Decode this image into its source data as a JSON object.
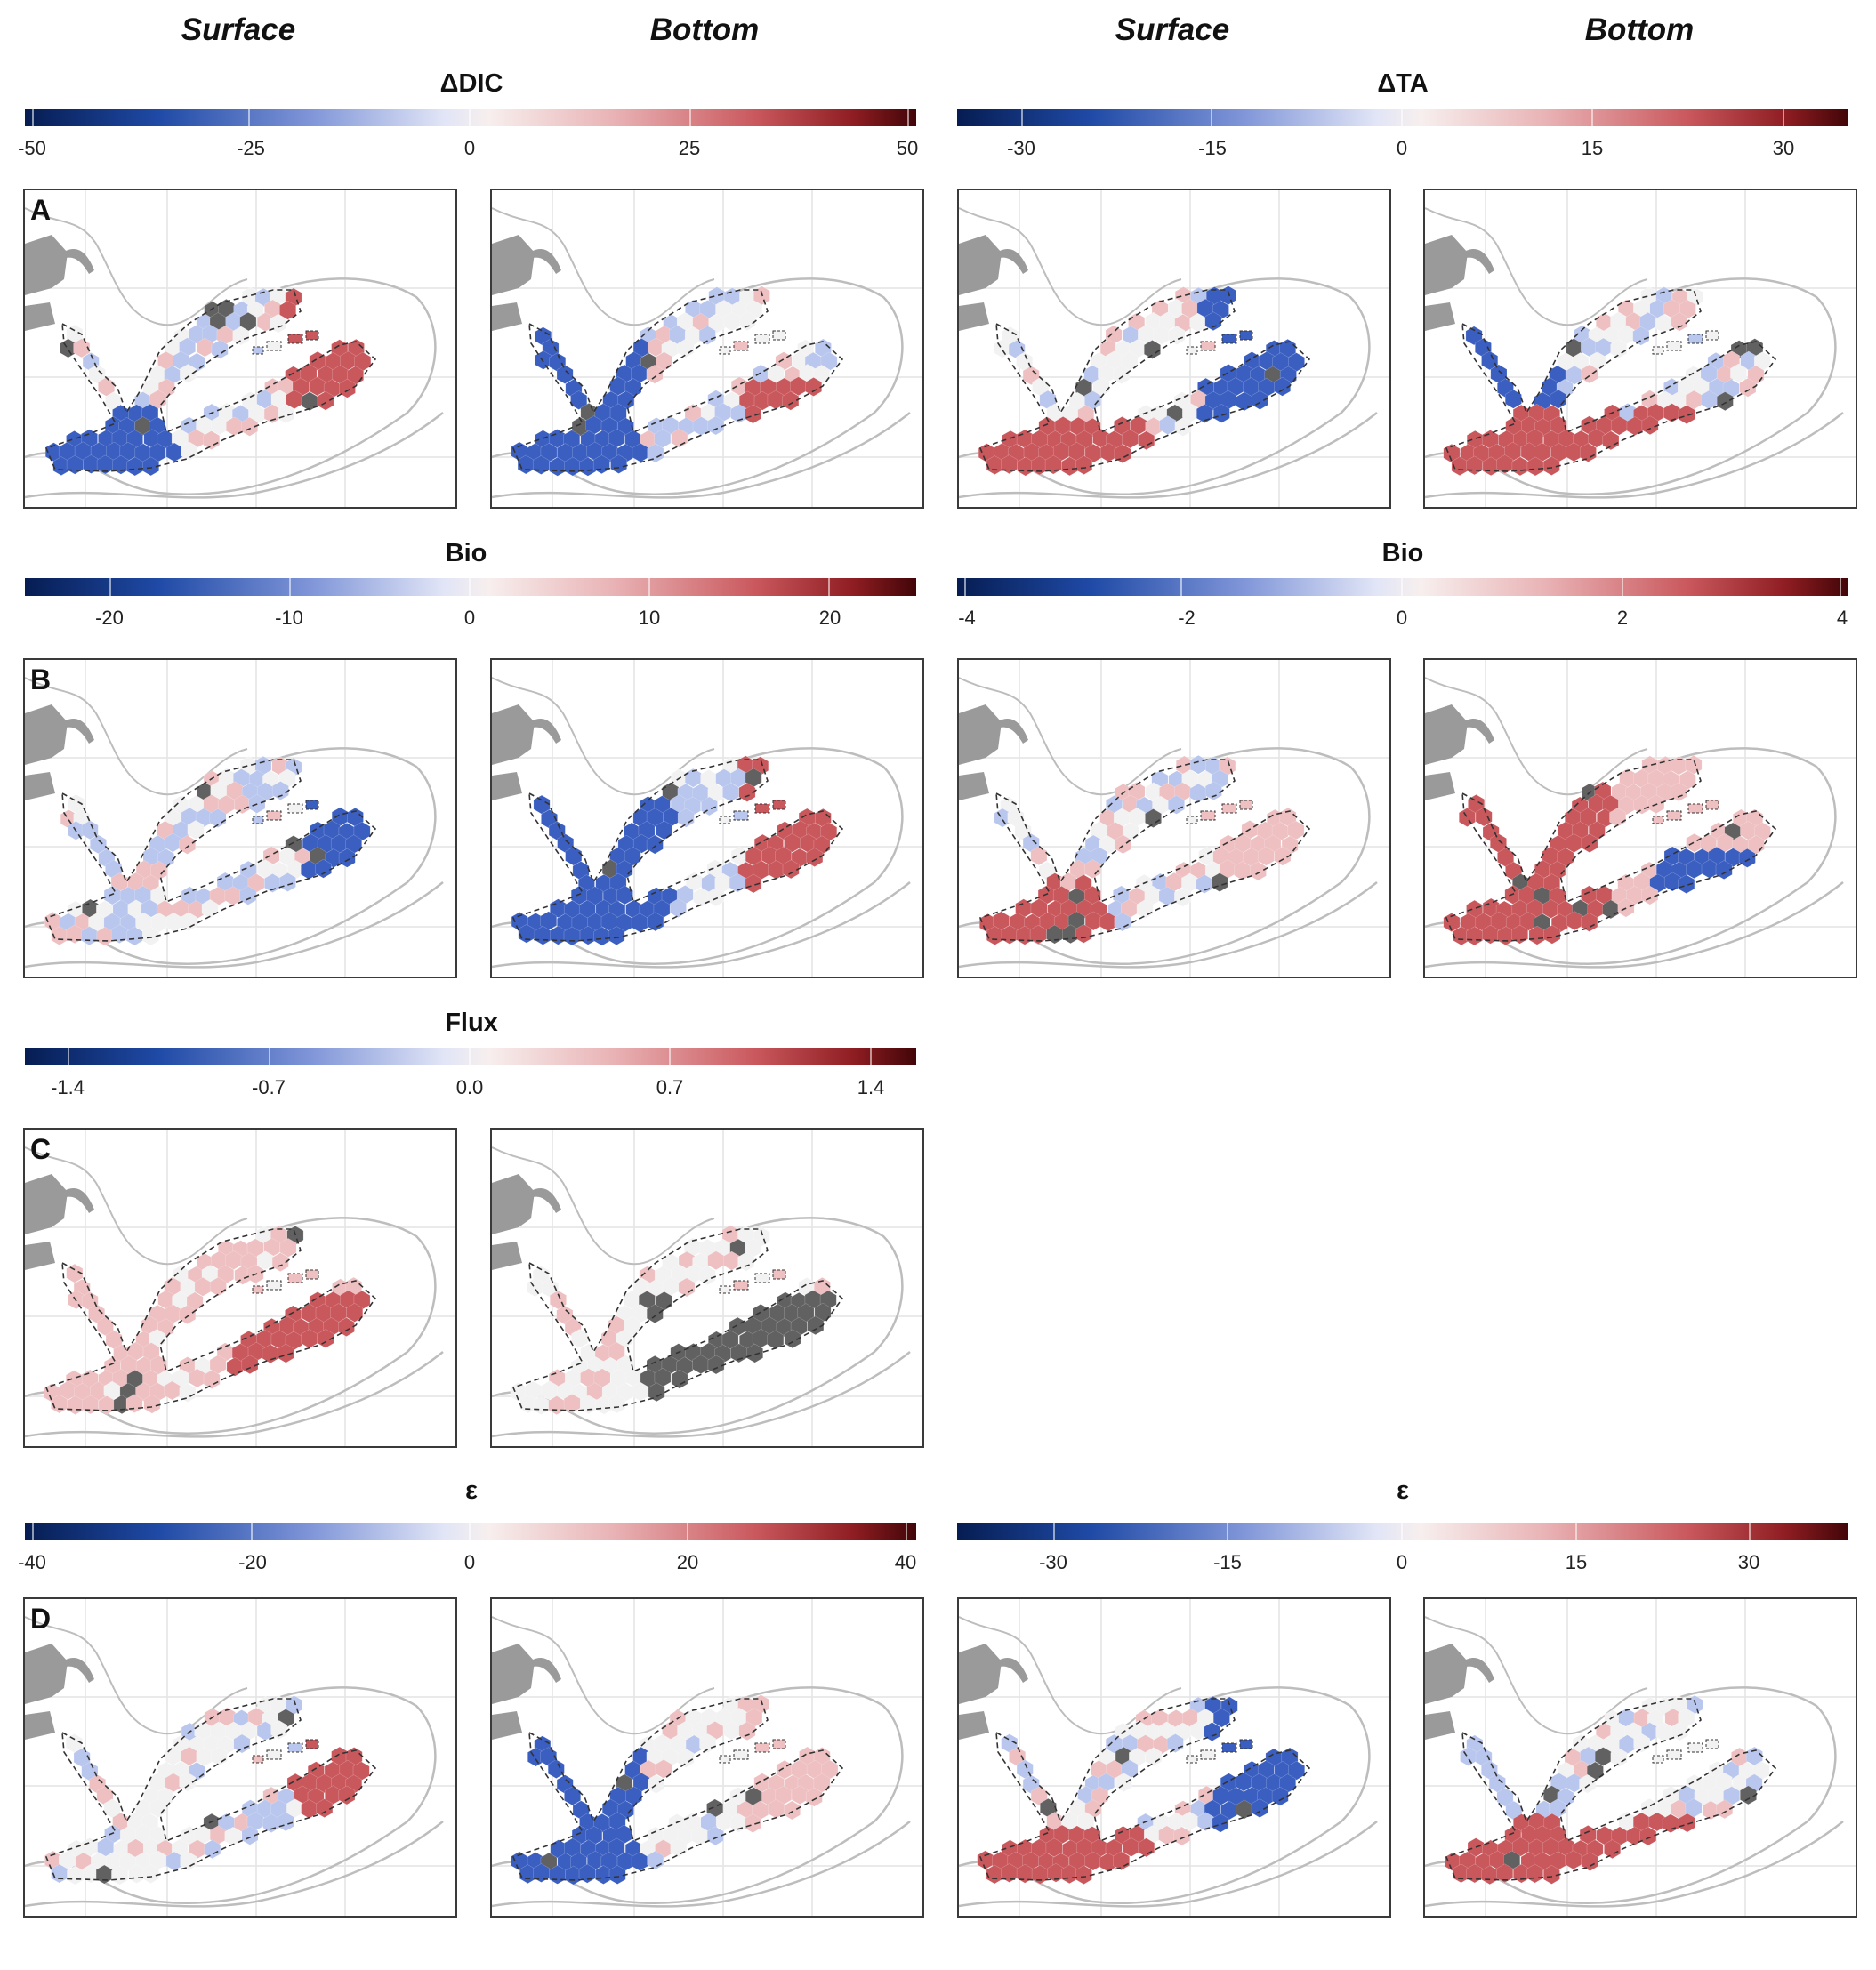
{
  "column_headers": [
    "Surface",
    "Bottom",
    "Surface",
    "Bottom"
  ],
  "colorbars": {
    "a_left": {
      "title": "ΔDIC",
      "ticks": [
        "-50",
        "-25",
        "0",
        "25",
        "50"
      ]
    },
    "a_right": {
      "title": "ΔTA",
      "ticks": [
        "-30",
        "-15",
        "0",
        "15",
        "30"
      ]
    },
    "b_left": {
      "title": "Bio",
      "ticks": [
        "-20",
        "-10",
        "0",
        "10",
        "20"
      ]
    },
    "b_right": {
      "title": "Bio",
      "ticks": [
        "-4",
        "-2",
        "0",
        "2",
        "4"
      ]
    },
    "c_left": {
      "title": "Flux",
      "ticks": [
        "-1.4",
        "-0.7",
        "0.0",
        "0.7",
        "1.4"
      ]
    },
    "d_left": {
      "title": "ε",
      "ticks": [
        "-40",
        "-20",
        "0",
        "20",
        "40"
      ]
    },
    "d_right": {
      "title": "ε",
      "ticks": [
        "-30",
        "-15",
        "0",
        "15",
        "30"
      ]
    }
  },
  "panel_labels": [
    "A",
    "B",
    "C",
    "D"
  ],
  "colors": {
    "neg_strong": "#0b2a6e",
    "neg_mid": "#3b5fc0",
    "neg_light": "#b9c6ee",
    "neutral": "#f2f2f2",
    "pos_light": "#eec0c2",
    "pos_mid": "#c9585d",
    "pos_strong": "#7a0f17",
    "missing": "#616161",
    "land": "#9a9a9a",
    "contour": "#bdbdbd"
  }
}
